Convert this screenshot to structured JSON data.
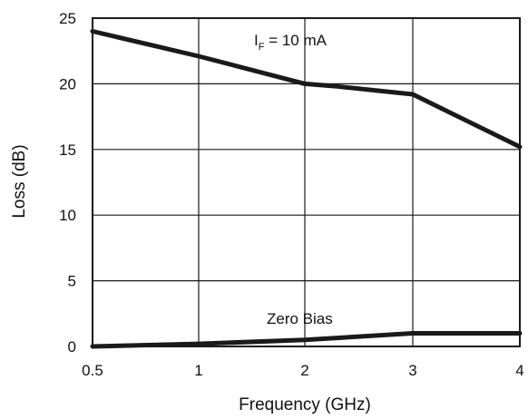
{
  "chart_data": {
    "type": "line",
    "title": "",
    "xlabel": "Frequency (GHz)",
    "ylabel": "Loss (dB)",
    "xlim": [
      0.5,
      4
    ],
    "ylim": [
      0,
      25
    ],
    "x_ticks": [
      "0.5",
      "1",
      "2",
      "3",
      "4"
    ],
    "y_ticks": [
      "0",
      "5",
      "10",
      "15",
      "20",
      "25"
    ],
    "grid": true,
    "x_scale": "categorical-evenly-spaced",
    "series": [
      {
        "annotation_main": "I",
        "annotation_sub": "F",
        "annotation_rest": " =  10 mA",
        "x": [
          0.5,
          1,
          2,
          2.3,
          3,
          4
        ],
        "y": [
          24.0,
          22.1,
          20.0,
          19.8,
          19.2,
          15.2
        ]
      },
      {
        "annotation": "Zero Bias",
        "x": [
          0.5,
          1,
          2,
          3,
          4
        ],
        "y": [
          0.0,
          0.2,
          0.5,
          1.0,
          1.0
        ]
      }
    ],
    "line_color": "#1a1a1a"
  }
}
